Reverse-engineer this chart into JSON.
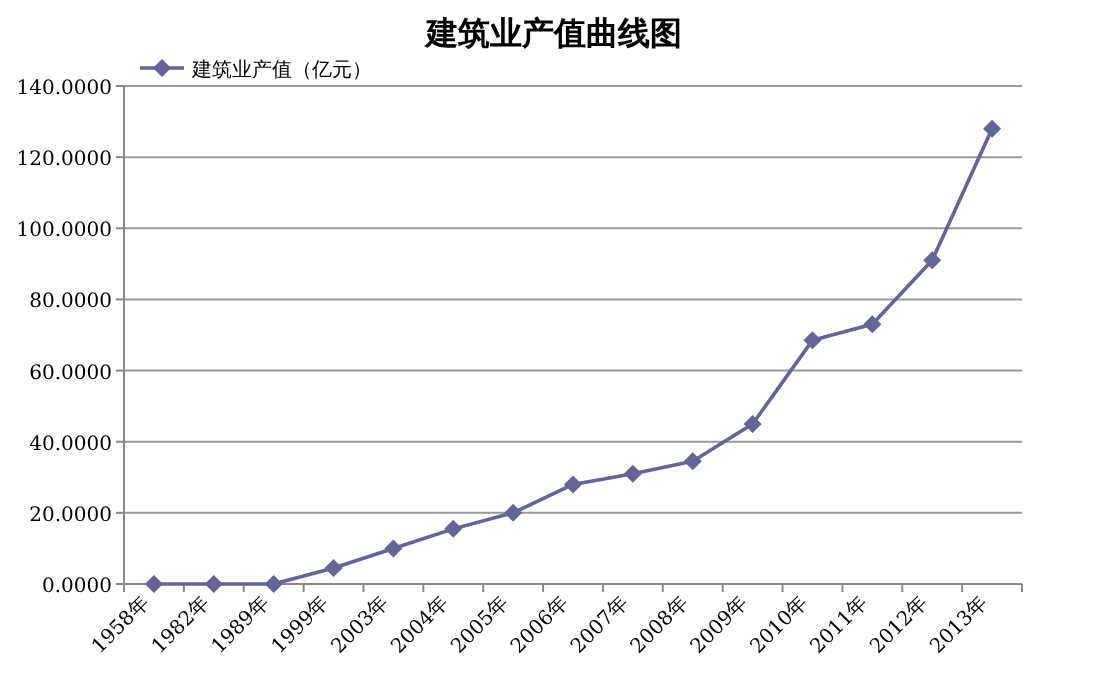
{
  "chart_data": {
    "type": "line",
    "title": "建筑业产值曲线图",
    "categories": [
      "1958年",
      "1982年",
      "1989年",
      "1999年",
      "2003年",
      "2004年",
      "2005年",
      "2006年",
      "2007年",
      "2008年",
      "2009年",
      "2010年",
      "2011年",
      "2012年",
      "2013年"
    ],
    "series": [
      {
        "name": "建筑业产值（亿元）",
        "color": "#646496",
        "values": [
          0,
          0,
          0,
          4.5,
          10,
          15.5,
          20,
          28,
          31,
          34.5,
          45,
          68.5,
          73,
          91,
          128
        ]
      }
    ],
    "ylim": [
      0,
      140
    ],
    "yticks": [
      {
        "value": 0,
        "label": "0.0000"
      },
      {
        "value": 20,
        "label": "20.0000"
      },
      {
        "value": 40,
        "label": "40.0000"
      },
      {
        "value": 60,
        "label": "60.0000"
      },
      {
        "value": 80,
        "label": "80.0000"
      },
      {
        "value": 100,
        "label": "100.0000"
      },
      {
        "value": 120,
        "label": "120.0000"
      },
      {
        "value": 140,
        "label": "140.0000"
      }
    ],
    "grid": "y",
    "legend": "top left",
    "marker": "diamond",
    "line_style": "solid"
  }
}
